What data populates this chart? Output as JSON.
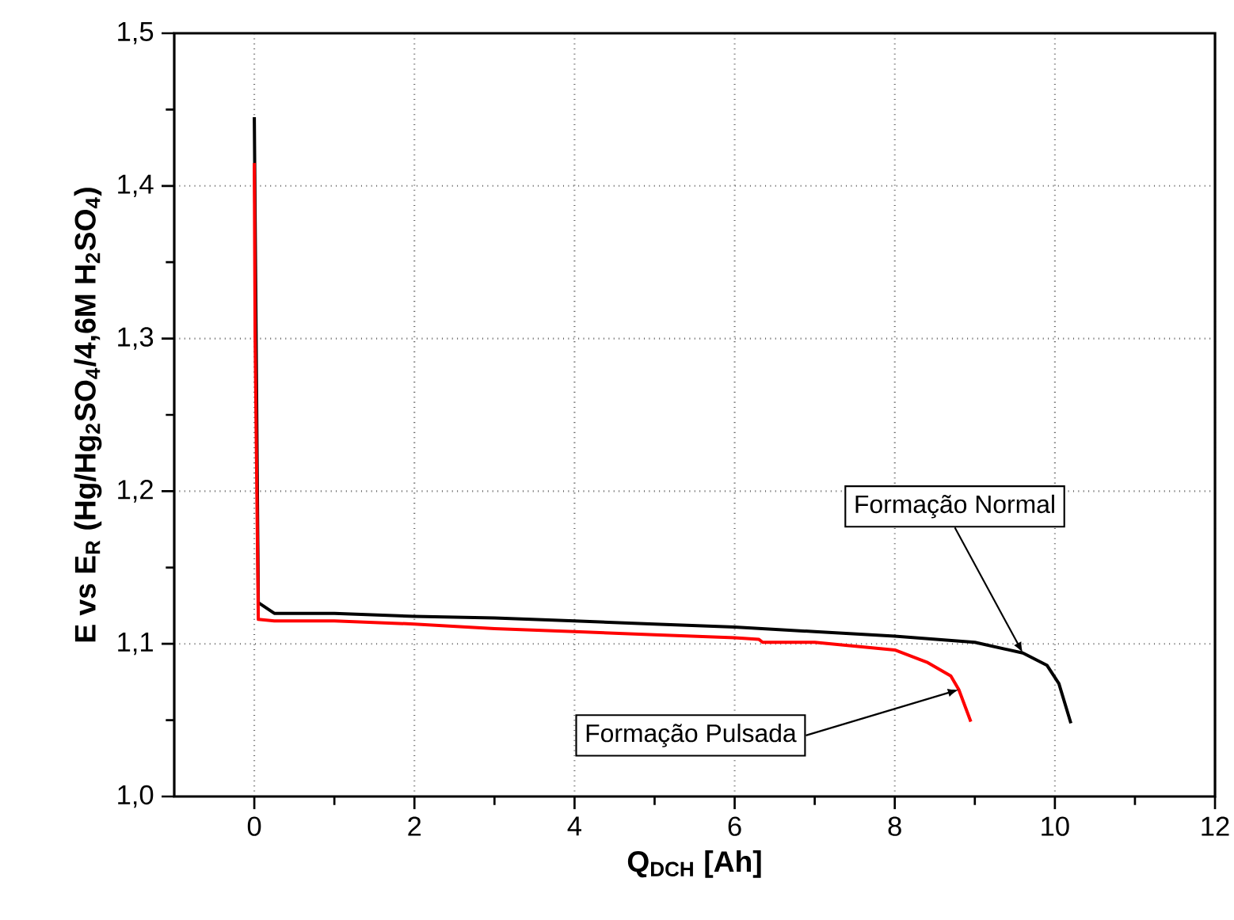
{
  "chart_data": {
    "type": "line",
    "xlabel": "Q$_{DCH}$ [Ah]",
    "ylabel": "E vs E$_{R}$ (Hg/Hg$_{2}$SO$_{4}$/4,6M H$_{2}$SO$_{4}$)",
    "xlim": [
      -1,
      12
    ],
    "ylim": [
      1.0,
      1.5
    ],
    "xticks": [
      0,
      2,
      4,
      6,
      8,
      10,
      12
    ],
    "yticks": [
      {
        "value": 1.0,
        "label": "1,0"
      },
      {
        "value": 1.1,
        "label": "1,1"
      },
      {
        "value": 1.2,
        "label": "1,2"
      },
      {
        "value": 1.3,
        "label": "1,3"
      },
      {
        "value": 1.4,
        "label": "1,4"
      },
      {
        "value": 1.5,
        "label": "1,5"
      }
    ],
    "grid": true,
    "marker": "none",
    "line_style": "solid",
    "series": [
      {
        "color": "#000000",
        "x": [
          0,
          0.01,
          0.05,
          0.25,
          1,
          2,
          3,
          4,
          5,
          6,
          7,
          8,
          9,
          9.6,
          9.9,
          10.05,
          10.2
        ],
        "values": [
          1.445,
          null,
          1.127,
          1.12,
          1.12,
          1.118,
          1.117,
          1.115,
          1.113,
          1.111,
          1.108,
          1.105,
          1.101,
          1.094,
          1.086,
          1.074,
          1.048
        ]
      },
      {
        "color": "#ff0000",
        "x": [
          0,
          0.01,
          0.05,
          0.25,
          1,
          2,
          3,
          4,
          5,
          6,
          6.3,
          6.35,
          7,
          8,
          8.4,
          8.7,
          8.8,
          8.95
        ],
        "values": [
          1.415,
          1.3,
          1.116,
          1.115,
          1.115,
          1.113,
          1.11,
          1.108,
          1.106,
          1.104,
          1.103,
          1.101,
          1.101,
          1.096,
          1.088,
          1.079,
          1.07,
          1.049
        ]
      }
    ],
    "annotations": [
      {
        "text": "Formação Normal",
        "x": 9.6,
        "y": 1.094
      },
      {
        "text": "Formação Pulsada",
        "x": 8.8,
        "y": 1.07
      }
    ]
  }
}
